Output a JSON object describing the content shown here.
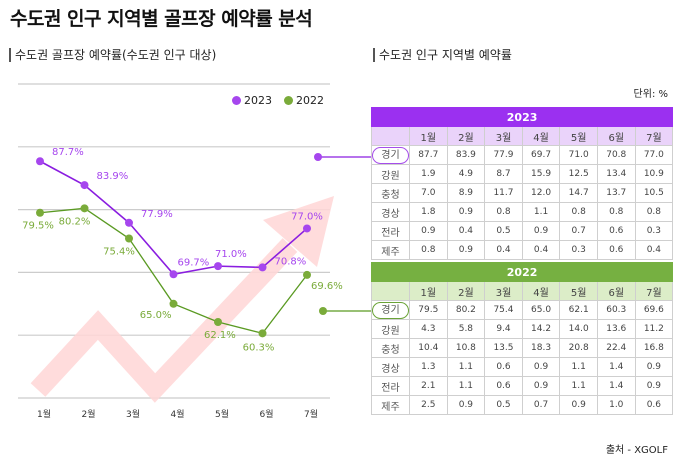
{
  "page": {
    "title": "수도권 인구 지역별 골프장 예약률 분석",
    "chart_title": "수도권 골프장 예약률(수도권 인구 대상)",
    "table_title": "수도권 인구 지역별 예약률",
    "unit": "단위: %",
    "source": "출처 - XGOLF"
  },
  "colors": {
    "series_2023": "#a646ee",
    "series_2023_line": "#8a1de0",
    "series_2022": "#7aab3a",
    "series_2022_line": "#5a9a22",
    "arrow": "#ffd6d6",
    "grid": "#cccccc"
  },
  "chart_data": {
    "type": "line",
    "title": "수도권 골프장 예약률(수도권 인구 대상)",
    "xlabel": "",
    "ylabel": "",
    "categories": [
      "1월",
      "2월",
      "3월",
      "4월",
      "5월",
      "6월",
      "7월"
    ],
    "series": [
      {
        "name": "2023",
        "values": [
          87.7,
          83.9,
          77.9,
          69.7,
          71.0,
          70.8,
          77.0
        ],
        "labels": [
          "87.7%",
          "83.9%",
          "77.9%",
          "69.7%",
          "71.0%",
          "70.8%",
          "77.0%"
        ]
      },
      {
        "name": "2022",
        "values": [
          79.5,
          80.2,
          75.4,
          65.0,
          62.1,
          60.3,
          69.6
        ],
        "labels": [
          "79.5%",
          "80.2%",
          "75.4%",
          "65.0%",
          "62.1%",
          "60.3%",
          "69.6%"
        ]
      }
    ],
    "ylim": [
      50,
      100
    ],
    "gridlines": [
      100,
      90,
      80,
      70,
      60,
      50
    ],
    "grid": true,
    "legend": "top-right",
    "annotation": "rising trend arrow (decorative)"
  },
  "tables": [
    {
      "year": "2023",
      "months": [
        "1월",
        "2월",
        "3월",
        "4월",
        "5월",
        "6월",
        "7월"
      ],
      "highlight_region": "경기",
      "rows": [
        {
          "region": "경기",
          "values": [
            "87.7",
            "83.9",
            "77.9",
            "69.7",
            "71.0",
            "70.8",
            "77.0"
          ]
        },
        {
          "region": "강원",
          "values": [
            "1.9",
            "4.9",
            "8.7",
            "15.9",
            "12.5",
            "13.4",
            "10.9"
          ]
        },
        {
          "region": "충청",
          "values": [
            "7.0",
            "8.9",
            "11.7",
            "12.0",
            "14.7",
            "13.7",
            "10.5"
          ]
        },
        {
          "region": "경상",
          "values": [
            "1.8",
            "0.9",
            "0.8",
            "1.1",
            "0.8",
            "0.8",
            "0.8"
          ]
        },
        {
          "region": "전라",
          "values": [
            "0.9",
            "0.4",
            "0.5",
            "0.9",
            "0.7",
            "0.6",
            "0.3"
          ]
        },
        {
          "region": "제주",
          "values": [
            "0.8",
            "0.9",
            "0.4",
            "0.4",
            "0.3",
            "0.6",
            "0.4"
          ]
        }
      ]
    },
    {
      "year": "2022",
      "months": [
        "1월",
        "2월",
        "3월",
        "4월",
        "5월",
        "6월",
        "7월"
      ],
      "highlight_region": "경기",
      "rows": [
        {
          "region": "경기",
          "values": [
            "79.5",
            "80.2",
            "75.4",
            "65.0",
            "62.1",
            "60.3",
            "69.6"
          ]
        },
        {
          "region": "강원",
          "values": [
            "4.3",
            "5.8",
            "9.4",
            "14.2",
            "14.0",
            "13.6",
            "11.2"
          ]
        },
        {
          "region": "충청",
          "values": [
            "10.4",
            "10.8",
            "13.5",
            "18.3",
            "20.8",
            "22.4",
            "16.8"
          ]
        },
        {
          "region": "경상",
          "values": [
            "1.3",
            "1.1",
            "0.6",
            "0.9",
            "1.1",
            "1.4",
            "0.9"
          ]
        },
        {
          "region": "전라",
          "values": [
            "2.1",
            "1.1",
            "0.6",
            "0.9",
            "1.1",
            "1.4",
            "0.9"
          ]
        },
        {
          "region": "제주",
          "values": [
            "2.5",
            "0.9",
            "0.5",
            "0.7",
            "0.9",
            "1.0",
            "0.6"
          ]
        }
      ]
    }
  ]
}
